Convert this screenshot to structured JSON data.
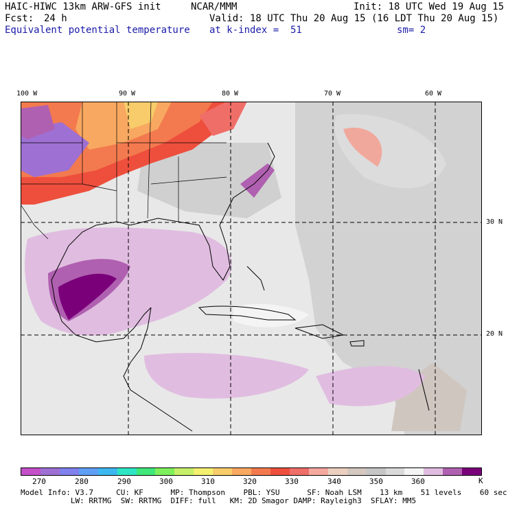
{
  "header": {
    "model": "HAIC-HIWC 13km ARW-GFS init",
    "org": "NCAR/MMM",
    "init": "Init: 18 UTC Wed 19 Aug 15",
    "fcst_label": "Fcst:",
    "fcst_value": "24 h",
    "valid": "Valid: 18 UTC Thu 20 Aug 15 (16 LDT Thu 20 Aug 15)",
    "field": "Equivalent potential temperature",
    "level": "at k-index =  51",
    "smooth": "sm= 2"
  },
  "map": {
    "lon_labels": [
      "100 W",
      "90 W",
      "80 W",
      "70 W",
      "60 W"
    ],
    "lat_labels": [
      "30 N",
      "20 N"
    ]
  },
  "colorbar": {
    "colors": [
      "#c350c8",
      "#9e70d3",
      "#8080ee",
      "#5f9ef5",
      "#3cb8f0",
      "#2ee5c4",
      "#3fe87a",
      "#7ef05c",
      "#c6f069",
      "#f4f070",
      "#f8cc6a",
      "#f8a860",
      "#f37a4f",
      "#ee4f3d",
      "#f06e68",
      "#f4a89e",
      "#ecd0bf",
      "#d4c8c0",
      "#c6c6c6",
      "#dadada",
      "#f4f4f4",
      "#e0bde0",
      "#b060b0",
      "#7a007a"
    ],
    "labels": [
      "270",
      "280",
      "290",
      "300",
      "310",
      "320",
      "330",
      "340",
      "350",
      "360"
    ],
    "unit": "K"
  },
  "footer": {
    "line1": "Model Info: V3.7     CU: KF      MP: Thompson    PBL: YSU      SF: Noah LSM    13 km    51 levels    60 sec",
    "line2": "           LW: RRTMG  SW: RRTMG  DIFF: full   KM: 2D Smagor DAMP: Rayleigh3  SFLAY: MM5"
  }
}
